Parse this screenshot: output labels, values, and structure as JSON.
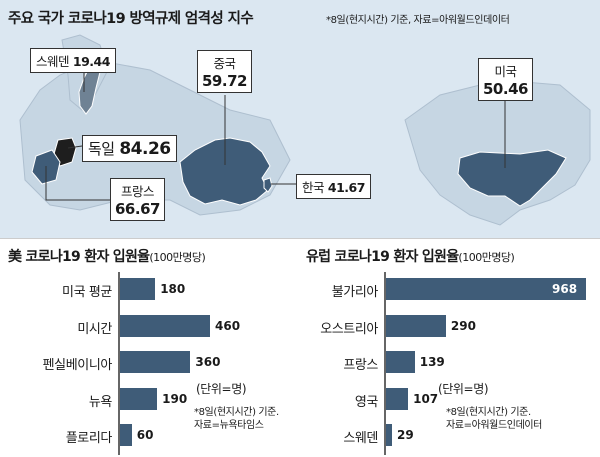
{
  "map": {
    "title": "주요 국가 코로나19 방역규제 엄격성 지수",
    "note": "*8일(현지시간) 기준, 자료=아워월드인데이터",
    "countries": [
      {
        "name": "스웨덴",
        "value": "19.44"
      },
      {
        "name": "독일",
        "value": "84.26"
      },
      {
        "name": "프랑스",
        "value": "66.67"
      },
      {
        "name": "중국",
        "value": "59.72"
      },
      {
        "name": "한국",
        "value": "41.67"
      },
      {
        "name": "미국",
        "value": "50.46"
      }
    ]
  },
  "chart_data": [
    {
      "type": "bar",
      "orientation": "horizontal",
      "title": "美 코로나19 환자 입원율",
      "unit_title": "(100만명당)",
      "categories": [
        "미국 평균",
        "미시간",
        "펜실베이니아",
        "뉴욕",
        "플로리다"
      ],
      "values": [
        180,
        460,
        360,
        190,
        60
      ],
      "unit_label": "(단위=명)",
      "note": [
        "*8일(현지시간) 기준.",
        "자료=뉴욕타임스"
      ],
      "bar_color": "#3f5c78"
    },
    {
      "type": "bar",
      "orientation": "horizontal",
      "title": "유럽 코로나19 환자 입원율",
      "unit_title": "(100만명당)",
      "categories": [
        "불가리아",
        "오스트리아",
        "프랑스",
        "영국",
        "스웨덴"
      ],
      "values": [
        968,
        290,
        139,
        107,
        29
      ],
      "unit_label": "(단위=명)",
      "note": [
        "*8일(현지시간) 기준.",
        "자료=아워월드인데이터"
      ],
      "bar_color": "#3f5c78"
    }
  ]
}
